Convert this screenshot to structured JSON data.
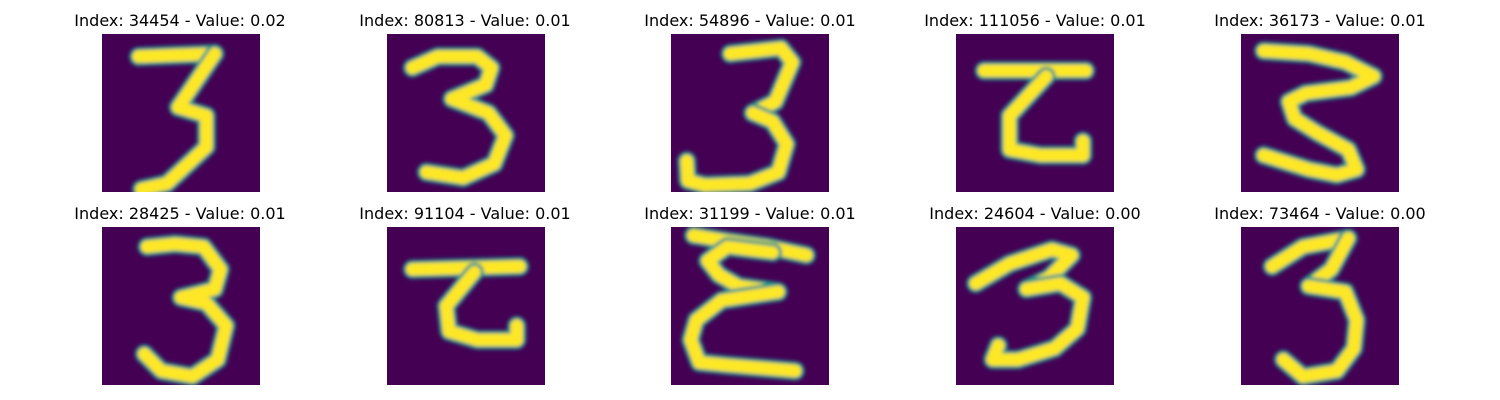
{
  "colors": {
    "background": "#440154",
    "mid_tone": "#21918c",
    "stroke": "#fde725"
  },
  "panels": [
    {
      "title": "Index: 34454 - Value: 0.02",
      "strokes": [
        [
          [
            6.5,
            4
          ],
          [
            20,
            3.5
          ]
        ],
        [
          [
            20,
            3.5
          ],
          [
            13.5,
            13
          ],
          [
            18.5,
            14.5
          ],
          [
            18.5,
            20
          ],
          [
            11.5,
            26.5
          ],
          [
            7,
            27.5
          ]
        ]
      ]
    },
    {
      "title": "Index: 80813 - Value: 0.01",
      "strokes": [
        [
          [
            4.5,
            6
          ],
          [
            9,
            4
          ],
          [
            16,
            4
          ],
          [
            18.5,
            6
          ],
          [
            17.5,
            9
          ],
          [
            11.5,
            11.5
          ],
          [
            18,
            14
          ],
          [
            21,
            18
          ],
          [
            19,
            23
          ],
          [
            13.5,
            25.5
          ],
          [
            7,
            24.5
          ]
        ]
      ]
    },
    {
      "title": "Index: 54896 - Value: 0.01",
      "strokes": [
        [
          [
            10.5,
            3.5
          ],
          [
            19.5,
            2.5
          ],
          [
            21.5,
            5
          ],
          [
            18.5,
            12
          ],
          [
            14.5,
            14
          ]
        ],
        [
          [
            14.5,
            14
          ],
          [
            18,
            15.5
          ],
          [
            20.5,
            19.5
          ],
          [
            19,
            24.5
          ],
          [
            14,
            26.5
          ],
          [
            6,
            26.8
          ],
          [
            3,
            26
          ],
          [
            2.8,
            22.5
          ]
        ]
      ]
    },
    {
      "title": "Index: 111056 - Value: 0.01",
      "strokes": [
        [
          [
            5,
            6.5
          ],
          [
            23,
            6.5
          ]
        ],
        [
          [
            16,
            7.5
          ],
          [
            9.5,
            14.5
          ],
          [
            9.5,
            20.5
          ],
          [
            15,
            21.5
          ],
          [
            22.5,
            21.5
          ],
          [
            22.5,
            19
          ]
        ]
      ]
    },
    {
      "title": "Index: 36173 - Value: 0.01",
      "strokes": [
        [
          [
            4,
            3
          ],
          [
            12,
            3.5
          ],
          [
            18.5,
            5
          ],
          [
            23.5,
            7.5
          ],
          [
            19.5,
            9.5
          ],
          [
            11.5,
            10.5
          ],
          [
            8.5,
            12
          ],
          [
            9.5,
            15
          ],
          [
            13.5,
            17.5
          ],
          [
            19,
            20.5
          ],
          [
            20.5,
            24
          ],
          [
            17,
            25
          ],
          [
            12,
            24
          ],
          [
            4,
            21.5
          ]
        ]
      ]
    },
    {
      "title": "Index: 28425 - Value: 0.01",
      "strokes": [
        [
          [
            8,
            3.5
          ],
          [
            13,
            3
          ],
          [
            18,
            3.5
          ],
          [
            21,
            7.5
          ],
          [
            20,
            11
          ],
          [
            14,
            12.5
          ],
          [
            18.5,
            13.5
          ],
          [
            22,
            17.5
          ],
          [
            20.5,
            23.5
          ],
          [
            16,
            26.5
          ],
          [
            10.5,
            25.5
          ],
          [
            7.5,
            22.5
          ]
        ]
      ]
    },
    {
      "title": "Index: 91104 - Value: 0.01",
      "strokes": [
        [
          [
            4.5,
            7.5
          ],
          [
            23.5,
            7
          ]
        ],
        [
          [
            15.5,
            8
          ],
          [
            10.5,
            14
          ],
          [
            11,
            18.5
          ],
          [
            16,
            20
          ],
          [
            23,
            20
          ],
          [
            23,
            17.5
          ]
        ]
      ]
    },
    {
      "title": "Index: 31199 - Value: 0.01",
      "strokes": [
        [
          [
            4,
            1.5
          ],
          [
            10,
            2.5
          ],
          [
            17,
            3.5
          ],
          [
            24,
            5
          ]
        ],
        [
          [
            18,
            4.5
          ],
          [
            10,
            3.5
          ],
          [
            6.5,
            6
          ],
          [
            8.5,
            8.5
          ],
          [
            12,
            10.5
          ],
          [
            19,
            11.5
          ]
        ],
        [
          [
            19,
            11.5
          ],
          [
            9,
            13
          ],
          [
            4.5,
            16.5
          ],
          [
            3.5,
            20
          ],
          [
            5,
            24
          ],
          [
            10,
            24.5
          ],
          [
            16,
            25
          ],
          [
            22,
            25.5
          ]
        ]
      ]
    },
    {
      "title": "Index: 24604 - Value: 0.00",
      "strokes": [
        [
          [
            3.5,
            10
          ],
          [
            9.5,
            6.5
          ],
          [
            17,
            4
          ],
          [
            20.5,
            5
          ],
          [
            16.5,
            9
          ],
          [
            12.5,
            11
          ]
        ],
        [
          [
            12.5,
            11
          ],
          [
            18.5,
            10
          ],
          [
            22.5,
            12.5
          ],
          [
            21.5,
            18
          ],
          [
            17.5,
            21.5
          ],
          [
            11,
            23.5
          ],
          [
            6.5,
            23.5
          ],
          [
            7.5,
            21
          ]
        ]
      ]
    },
    {
      "title": "Index: 73464 - Value: 0.00",
      "strokes": [
        [
          [
            5.5,
            7
          ],
          [
            11,
            3.5
          ],
          [
            19,
            2
          ]
        ],
        [
          [
            19,
            2
          ],
          [
            16,
            7.5
          ],
          [
            12,
            10.5
          ]
        ],
        [
          [
            12,
            10.5
          ],
          [
            18.5,
            11.5
          ],
          [
            20.5,
            16.5
          ],
          [
            20,
            21.5
          ],
          [
            17,
            25.5
          ],
          [
            11,
            26.5
          ],
          [
            7.5,
            23.5
          ]
        ]
      ]
    }
  ]
}
